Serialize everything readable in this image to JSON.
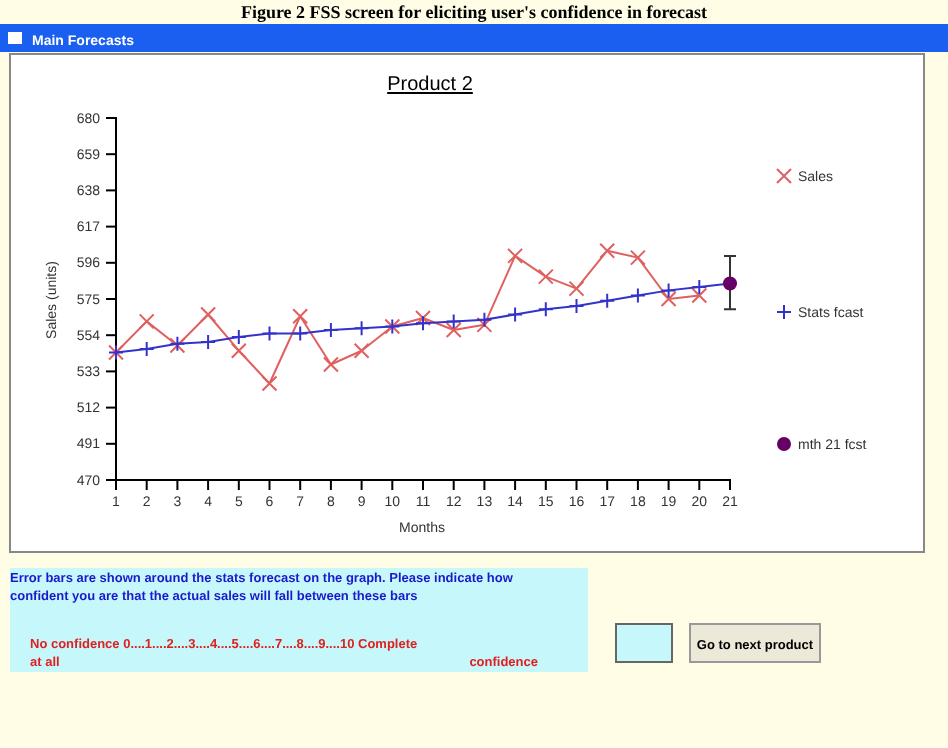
{
  "chart_data": {
    "type": "line",
    "title": "Product 2",
    "xlabel": "Months",
    "ylabel": "Sales (units)",
    "x": [
      1,
      2,
      3,
      4,
      5,
      6,
      7,
      8,
      9,
      10,
      11,
      12,
      13,
      14,
      15,
      16,
      17,
      18,
      19,
      20
    ],
    "series": [
      {
        "name": "Sales",
        "type": "line",
        "color": "#e06060",
        "marker": "cross",
        "values": [
          544,
          562,
          548,
          566,
          545,
          526,
          565,
          537,
          545,
          559,
          564,
          557,
          560,
          600,
          588,
          581,
          603,
          599,
          575,
          577
        ]
      },
      {
        "name": "Stats fcast",
        "type": "line",
        "color": "#3333cc",
        "marker": "cross",
        "x": [
          1,
          2,
          3,
          4,
          5,
          6,
          7,
          8,
          9,
          10,
          11,
          12,
          13,
          14,
          15,
          16,
          17,
          18,
          19,
          20,
          21
        ],
        "values": [
          544,
          546,
          549,
          550,
          553,
          555,
          555,
          557,
          558,
          559,
          561,
          562,
          563,
          566,
          569,
          571,
          574,
          577,
          580,
          582,
          584
        ]
      },
      {
        "name": "mth 21 fcst",
        "type": "scatter",
        "color": "#660066",
        "marker": "circle",
        "x": [
          21
        ],
        "values": [
          584
        ],
        "errors": [
          [
            569,
            600
          ]
        ]
      }
    ],
    "xlim": [
      1,
      21
    ],
    "xticks": [
      1,
      2,
      3,
      4,
      5,
      6,
      7,
      8,
      9,
      10,
      11,
      12,
      13,
      14,
      15,
      16,
      17,
      18,
      19,
      20,
      21
    ],
    "ylim": [
      470,
      680
    ],
    "yticks": [
      470,
      491,
      512,
      533,
      554,
      575,
      596,
      617,
      638,
      659,
      680
    ],
    "grid": false,
    "legend": "right",
    "annotations": [
      "Figure 2 FSS screen for eliciting user's confidence in forecast",
      "Main Forecasts",
      "Error bars are shown around the stats forecast on the graph. Please indicate how confident you are that the actual sales will fall between these bars",
      "No confidence 0....1....2....3....4....5....6....7....8....9....10 Complete",
      "at all",
      "confidence",
      "Go to next product"
    ]
  }
}
